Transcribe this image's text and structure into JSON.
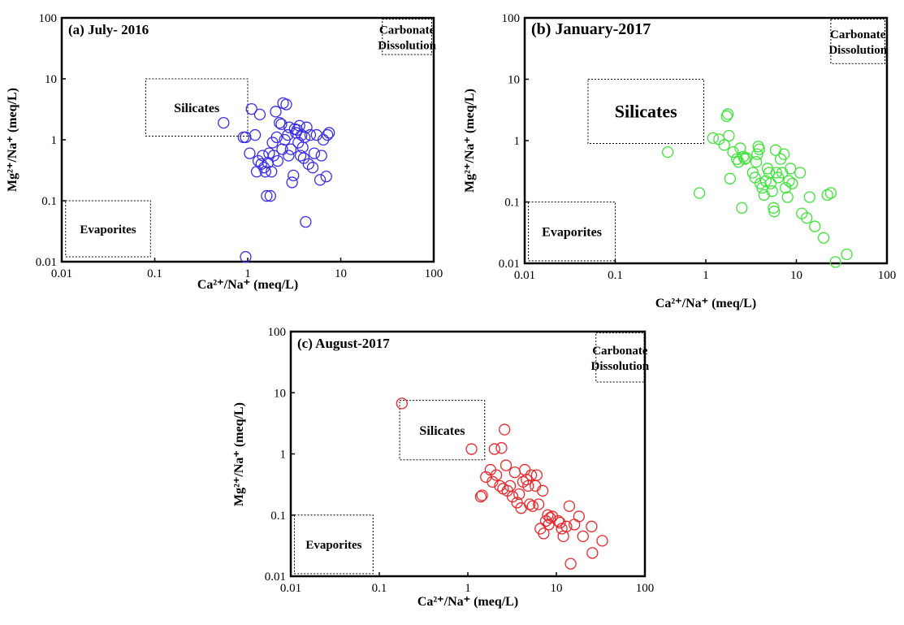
{
  "chart_data": [
    {
      "type": "scatter",
      "title": "(a) July- 2016",
      "xlabel": "Ca²⁺/Na⁺ (meq/L)",
      "ylabel": "Mg²⁺/Na⁺ (meq/L)",
      "xscale": "log",
      "yscale": "log",
      "xlim": [
        0.01,
        100
      ],
      "ylim": [
        0.01,
        100
      ],
      "grid": false,
      "marker_color": "#3a2ee8",
      "regions": [
        {
          "label": "Silicates",
          "x": [
            0.08,
            1.0
          ],
          "y": [
            1.15,
            10
          ]
        },
        {
          "label": "Evaporites",
          "x": [
            0.011,
            0.09
          ],
          "y": [
            0.012,
            0.1
          ]
        },
        {
          "label": "Carbonate Dissolution",
          "x": [
            28,
            95
          ],
          "y": [
            25,
            95
          ]
        }
      ],
      "points": [
        [
          0.55,
          1.9
        ],
        [
          0.9,
          1.1
        ],
        [
          0.95,
          1.1
        ],
        [
          1.05,
          0.6
        ],
        [
          1.1,
          3.2
        ],
        [
          1.2,
          1.2
        ],
        [
          1.25,
          0.3
        ],
        [
          1.3,
          0.45
        ],
        [
          1.35,
          2.6
        ],
        [
          1.4,
          0.4
        ],
        [
          1.45,
          0.55
        ],
        [
          1.5,
          0.35
        ],
        [
          1.55,
          0.3
        ],
        [
          1.6,
          0.12
        ],
        [
          1.65,
          0.42
        ],
        [
          1.7,
          0.6
        ],
        [
          1.75,
          0.12
        ],
        [
          1.8,
          0.3
        ],
        [
          1.85,
          0.9
        ],
        [
          1.9,
          0.55
        ],
        [
          2.0,
          2.9
        ],
        [
          2.05,
          1.1
        ],
        [
          2.1,
          0.45
        ],
        [
          2.2,
          1.9
        ],
        [
          2.3,
          1.8
        ],
        [
          2.35,
          0.7
        ],
        [
          2.4,
          4.0
        ],
        [
          2.5,
          1.0
        ],
        [
          2.6,
          3.8
        ],
        [
          2.7,
          1.2
        ],
        [
          2.75,
          0.55
        ],
        [
          2.8,
          1.6
        ],
        [
          2.9,
          0.7
        ],
        [
          3.0,
          0.2
        ],
        [
          3.1,
          0.26
        ],
        [
          3.2,
          1.5
        ],
        [
          3.3,
          1.3
        ],
        [
          3.4,
          1.45
        ],
        [
          3.5,
          0.9
        ],
        [
          3.6,
          1.7
        ],
        [
          3.7,
          0.55
        ],
        [
          3.8,
          1.2
        ],
        [
          3.9,
          0.75
        ],
        [
          4.0,
          0.5
        ],
        [
          4.1,
          1.1
        ],
        [
          4.2,
          0.045
        ],
        [
          4.3,
          1.6
        ],
        [
          4.5,
          0.4
        ],
        [
          4.7,
          1.2
        ],
        [
          5.0,
          0.35
        ],
        [
          5.2,
          0.6
        ],
        [
          5.5,
          1.2
        ],
        [
          6.0,
          0.22
        ],
        [
          6.2,
          0.55
        ],
        [
          6.5,
          1.0
        ],
        [
          7.0,
          0.25
        ],
        [
          7.2,
          1.2
        ],
        [
          7.5,
          1.3
        ],
        [
          0.95,
          0.012
        ]
      ]
    },
    {
      "type": "scatter",
      "title": "(b) January-2017",
      "xlabel": "Ca²⁺/Na⁺ (meq/L)",
      "ylabel": "Mg²⁺/Na⁺ (meq/L)",
      "xscale": "log",
      "yscale": "log",
      "xlim": [
        0.01,
        100
      ],
      "ylim": [
        0.01,
        100
      ],
      "grid": false,
      "marker_color": "#3fe23a",
      "regions": [
        {
          "label": "Silicates",
          "x": [
            0.05,
            0.95
          ],
          "y": [
            0.9,
            10
          ]
        },
        {
          "label": "Evaporites",
          "x": [
            0.011,
            0.1
          ],
          "y": [
            0.011,
            0.1
          ]
        },
        {
          "label": "Carbonate Dissolution",
          "x": [
            24,
            95
          ],
          "y": [
            18,
            95
          ]
        }
      ],
      "points": [
        [
          0.38,
          0.65
        ],
        [
          0.85,
          0.14
        ],
        [
          1.2,
          1.1
        ],
        [
          1.4,
          1.05
        ],
        [
          1.6,
          0.85
        ],
        [
          1.7,
          2.5
        ],
        [
          1.75,
          2.7
        ],
        [
          1.8,
          1.2
        ],
        [
          1.85,
          0.24
        ],
        [
          2.0,
          0.65
        ],
        [
          2.2,
          0.5
        ],
        [
          2.3,
          0.45
        ],
        [
          2.4,
          0.75
        ],
        [
          2.5,
          0.08
        ],
        [
          2.6,
          0.55
        ],
        [
          2.7,
          0.5
        ],
        [
          2.8,
          0.52
        ],
        [
          3.3,
          0.3
        ],
        [
          3.5,
          0.25
        ],
        [
          3.6,
          0.45
        ],
        [
          3.7,
          0.6
        ],
        [
          3.8,
          0.8
        ],
        [
          3.9,
          0.72
        ],
        [
          4.0,
          0.2
        ],
        [
          4.2,
          0.17
        ],
        [
          4.4,
          0.13
        ],
        [
          4.6,
          0.22
        ],
        [
          4.8,
          0.35
        ],
        [
          5.0,
          0.3
        ],
        [
          5.2,
          0.2
        ],
        [
          5.4,
          0.15
        ],
        [
          5.6,
          0.08
        ],
        [
          5.7,
          0.07
        ],
        [
          5.9,
          0.7
        ],
        [
          6.0,
          0.3
        ],
        [
          6.3,
          0.25
        ],
        [
          6.7,
          0.5
        ],
        [
          7.0,
          0.3
        ],
        [
          7.3,
          0.6
        ],
        [
          7.6,
          0.17
        ],
        [
          8.0,
          0.12
        ],
        [
          8.3,
          0.22
        ],
        [
          8.6,
          0.35
        ],
        [
          9.0,
          0.2
        ],
        [
          11,
          0.3
        ],
        [
          11.5,
          0.065
        ],
        [
          13,
          0.055
        ],
        [
          14,
          0.12
        ],
        [
          16,
          0.04
        ],
        [
          20,
          0.026
        ],
        [
          22,
          0.13
        ],
        [
          24,
          0.14
        ],
        [
          27,
          0.0105
        ],
        [
          36,
          0.014
        ]
      ]
    },
    {
      "type": "scatter",
      "title": "(c) August-2017",
      "xlabel": "Ca²⁺/Na⁺ (meq/L)",
      "ylabel": "Mg²⁺/Na⁺ (meq/L)",
      "xscale": "log",
      "yscale": "log",
      "xlim": [
        0.01,
        100
      ],
      "ylim": [
        0.01,
        100
      ],
      "grid": false,
      "marker_color": "#e8272b",
      "regions": [
        {
          "label": "Silicates",
          "x": [
            0.17,
            1.55
          ],
          "y": [
            0.8,
            7.5
          ]
        },
        {
          "label": "Evaporites",
          "x": [
            0.011,
            0.085
          ],
          "y": [
            0.011,
            0.1
          ]
        },
        {
          "label": "Carbonate Dissolution",
          "x": [
            28,
            98
          ],
          "y": [
            15,
            95
          ]
        }
      ],
      "points": [
        [
          0.18,
          6.7
        ],
        [
          1.1,
          1.2
        ],
        [
          1.4,
          0.2
        ],
        [
          1.45,
          0.21
        ],
        [
          1.6,
          0.42
        ],
        [
          1.8,
          0.55
        ],
        [
          1.9,
          0.35
        ],
        [
          2.0,
          1.2
        ],
        [
          2.1,
          0.45
        ],
        [
          2.3,
          0.3
        ],
        [
          2.4,
          1.25
        ],
        [
          2.5,
          0.27
        ],
        [
          2.6,
          2.5
        ],
        [
          2.7,
          0.65
        ],
        [
          2.8,
          0.25
        ],
        [
          3.0,
          0.3
        ],
        [
          3.2,
          0.2
        ],
        [
          3.4,
          0.5
        ],
        [
          3.6,
          0.16
        ],
        [
          3.8,
          0.22
        ],
        [
          4.0,
          0.13
        ],
        [
          4.2,
          0.35
        ],
        [
          4.4,
          0.55
        ],
        [
          4.6,
          0.38
        ],
        [
          4.8,
          0.3
        ],
        [
          5.0,
          0.15
        ],
        [
          5.2,
          0.45
        ],
        [
          5.4,
          0.14
        ],
        [
          5.8,
          0.3
        ],
        [
          6.0,
          0.45
        ],
        [
          6.3,
          0.15
        ],
        [
          6.6,
          0.06
        ],
        [
          7.0,
          0.25
        ],
        [
          7.2,
          0.05
        ],
        [
          7.6,
          0.08
        ],
        [
          8.0,
          0.1
        ],
        [
          8.2,
          0.07
        ],
        [
          8.5,
          0.09
        ],
        [
          9.0,
          0.095
        ],
        [
          10.5,
          0.08
        ],
        [
          11,
          0.075
        ],
        [
          11.5,
          0.06
        ],
        [
          12,
          0.045
        ],
        [
          13,
          0.065
        ],
        [
          14,
          0.14
        ],
        [
          14.5,
          0.016
        ],
        [
          16,
          0.07
        ],
        [
          18,
          0.095
        ],
        [
          20,
          0.045
        ],
        [
          25,
          0.065
        ],
        [
          25.5,
          0.024
        ],
        [
          33,
          0.038
        ]
      ]
    }
  ],
  "tick_labels": [
    "0.01",
    "0.1",
    "1",
    "10",
    "100"
  ]
}
